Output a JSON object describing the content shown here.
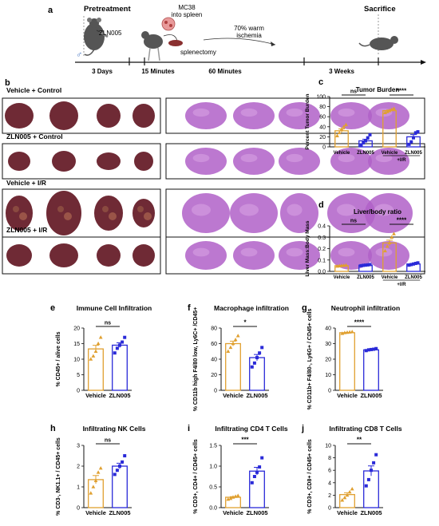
{
  "panel_letters": {
    "a": "a",
    "b": "b",
    "c": "c",
    "d": "d",
    "e": "e",
    "f": "f",
    "g": "g",
    "h": "h",
    "i": "i",
    "j": "j"
  },
  "timeline": {
    "pretreatment": "Pretreatment",
    "drug": "ZLN005",
    "mc38_line1": "MC38",
    "mc38_line2": "into spleen",
    "splenectomy": "splenectomy",
    "ischemia_line1": "70% warm",
    "ischemia_line2": "ischemia",
    "sacrifice": "Sacrifice",
    "durations": [
      "3 Days",
      "15 Minutes",
      "60 Minutes",
      "3 Weeks"
    ],
    "sex_symbol": "♂"
  },
  "photo_groups": [
    "Vehicle + Control",
    "ZLN005 + Control",
    "Vehicle + I/R",
    "ZLN005 + I/R"
  ],
  "colors": {
    "vehicle": "#e0a030",
    "zln": "#2a2ad8",
    "tissue": "#6f2a35",
    "stain": "#b060c8"
  },
  "chart_data": [
    {
      "id": "c",
      "type": "bar",
      "title": "Tumor Burden",
      "ylabel": "Percent Tumor Burden",
      "ylim": [
        0,
        100
      ],
      "yticks": [
        "0",
        "20",
        "40",
        "60",
        "80",
        "100"
      ],
      "categories": [
        "Vehicle",
        "ZLN005",
        "Vehicle",
        "ZLN005"
      ],
      "group_label": "+I/R",
      "values": [
        32,
        12,
        72,
        20
      ],
      "points": [
        [
          22,
          28,
          35,
          40,
          44
        ],
        [
          4,
          8,
          12,
          18,
          24
        ],
        [
          68,
          70,
          72,
          74,
          76
        ],
        [
          5,
          10,
          18,
          28,
          30
        ]
      ],
      "significance": [
        {
          "label": "ns",
          "between": [
            0,
            1
          ]
        },
        {
          "label": "****",
          "between": [
            2,
            3
          ]
        }
      ]
    },
    {
      "id": "d",
      "type": "bar",
      "title": "Liver/body ratio",
      "ylabel": "Liver Mass:Body Mass",
      "ylim": [
        0,
        0.4
      ],
      "yticks": [
        "0.0",
        "0.1",
        "0.2",
        "0.3",
        "0.4"
      ],
      "categories": [
        "Vehicle",
        "ZLN005",
        "Vehicle",
        "ZLN005"
      ],
      "group_label": "+I/R",
      "values": [
        0.05,
        0.055,
        0.25,
        0.065
      ],
      "points": [
        [
          0.045,
          0.048,
          0.05,
          0.052,
          0.055
        ],
        [
          0.05,
          0.053,
          0.055,
          0.057,
          0.06
        ],
        [
          0.18,
          0.22,
          0.25,
          0.3,
          0.33
        ],
        [
          0.055,
          0.06,
          0.065,
          0.07,
          0.075
        ]
      ],
      "significance": [
        {
          "label": "ns",
          "between": [
            0,
            1
          ]
        },
        {
          "label": "****",
          "between": [
            2,
            3
          ]
        }
      ]
    },
    {
      "id": "e",
      "type": "bar",
      "title": "Immune Cell Infiltration",
      "ylabel": "% CD45+ / alive cells",
      "ylim": [
        0,
        20
      ],
      "yticks": [
        "0",
        "5",
        "10",
        "15",
        "20"
      ],
      "categories": [
        "Vehicle",
        "ZLN005"
      ],
      "values": [
        13.3,
        14.5
      ],
      "points": [
        [
          10,
          11,
          12.5,
          15,
          17
        ],
        [
          12,
          13.5,
          14.5,
          15.5,
          17
        ]
      ],
      "significance": [
        {
          "label": "ns",
          "between": [
            0,
            1
          ]
        }
      ]
    },
    {
      "id": "f",
      "type": "bar",
      "title": "Macrophage infiltration",
      "ylabel": "% CD11b high F4/80 low, Ly6C+ /CD45+",
      "ylim": [
        0,
        80
      ],
      "yticks": [
        "0",
        "20",
        "40",
        "60",
        "80"
      ],
      "categories": [
        "Vehicle",
        "ZLN005"
      ],
      "values": [
        60,
        42
      ],
      "points": [
        [
          50,
          55,
          60,
          65,
          70
        ],
        [
          30,
          35,
          42,
          48,
          55
        ]
      ],
      "significance": [
        {
          "label": "*",
          "between": [
            0,
            1
          ]
        }
      ]
    },
    {
      "id": "g",
      "type": "bar",
      "title": "Neutrophil infiltration",
      "ylabel": "% CD11b+ F4/80-, Ly6G+ / CD45+ cells",
      "ylim": [
        0,
        40
      ],
      "yticks": [
        "0",
        "10",
        "20",
        "30",
        "40"
      ],
      "categories": [
        "Vehicle",
        "ZLN005"
      ],
      "values": [
        37,
        26
      ],
      "points": [
        [
          36.5,
          37,
          37.2,
          37.4,
          37.6
        ],
        [
          25.5,
          26,
          26.2,
          26.4,
          26.8
        ]
      ],
      "significance": [
        {
          "label": "****",
          "between": [
            0,
            1
          ]
        }
      ]
    },
    {
      "id": "h",
      "type": "bar",
      "title": "Infiltrating NK Cells",
      "ylabel": "% CD3-, NK1.1+ / CD45+ cells",
      "ylim": [
        0,
        3
      ],
      "yticks": [
        "0",
        "1",
        "2",
        "3"
      ],
      "categories": [
        "Vehicle",
        "ZLN005"
      ],
      "values": [
        1.35,
        2.0
      ],
      "points": [
        [
          0.7,
          1.0,
          1.3,
          1.7,
          1.9
        ],
        [
          1.6,
          1.8,
          2.0,
          2.2,
          2.5
        ]
      ],
      "significance": [
        {
          "label": "ns",
          "between": [
            0,
            1
          ]
        }
      ]
    },
    {
      "id": "i",
      "type": "bar",
      "title": "Infiltrating CD4 T Cells",
      "ylabel": "% CD3+, CD4+ / CD45+ cells",
      "ylim": [
        0,
        1.5
      ],
      "yticks": [
        "0.0",
        "0.5",
        "1.0",
        "1.5"
      ],
      "categories": [
        "Vehicle",
        "ZLN005"
      ],
      "values": [
        0.25,
        0.88
      ],
      "points": [
        [
          0.2,
          0.22,
          0.25,
          0.27,
          0.29
        ],
        [
          0.6,
          0.75,
          0.85,
          0.98,
          1.2
        ]
      ],
      "significance": [
        {
          "label": "***",
          "between": [
            0,
            1
          ]
        }
      ]
    },
    {
      "id": "j",
      "type": "bar",
      "title": "Infiltrating CD8 T Cells",
      "ylabel": "% CD3+, CD8+ / CD45+ cells",
      "ylim": [
        0,
        10
      ],
      "yticks": [
        "0",
        "2",
        "4",
        "6",
        "8",
        "10"
      ],
      "categories": [
        "Vehicle",
        "ZLN005"
      ],
      "values": [
        2.1,
        5.9
      ],
      "points": [
        [
          1.2,
          1.6,
          2.0,
          2.5,
          3.0
        ],
        [
          3.5,
          4.5,
          6.0,
          7.2,
          8.5
        ]
      ],
      "significance": [
        {
          "label": "**",
          "between": [
            0,
            1
          ]
        }
      ]
    }
  ]
}
